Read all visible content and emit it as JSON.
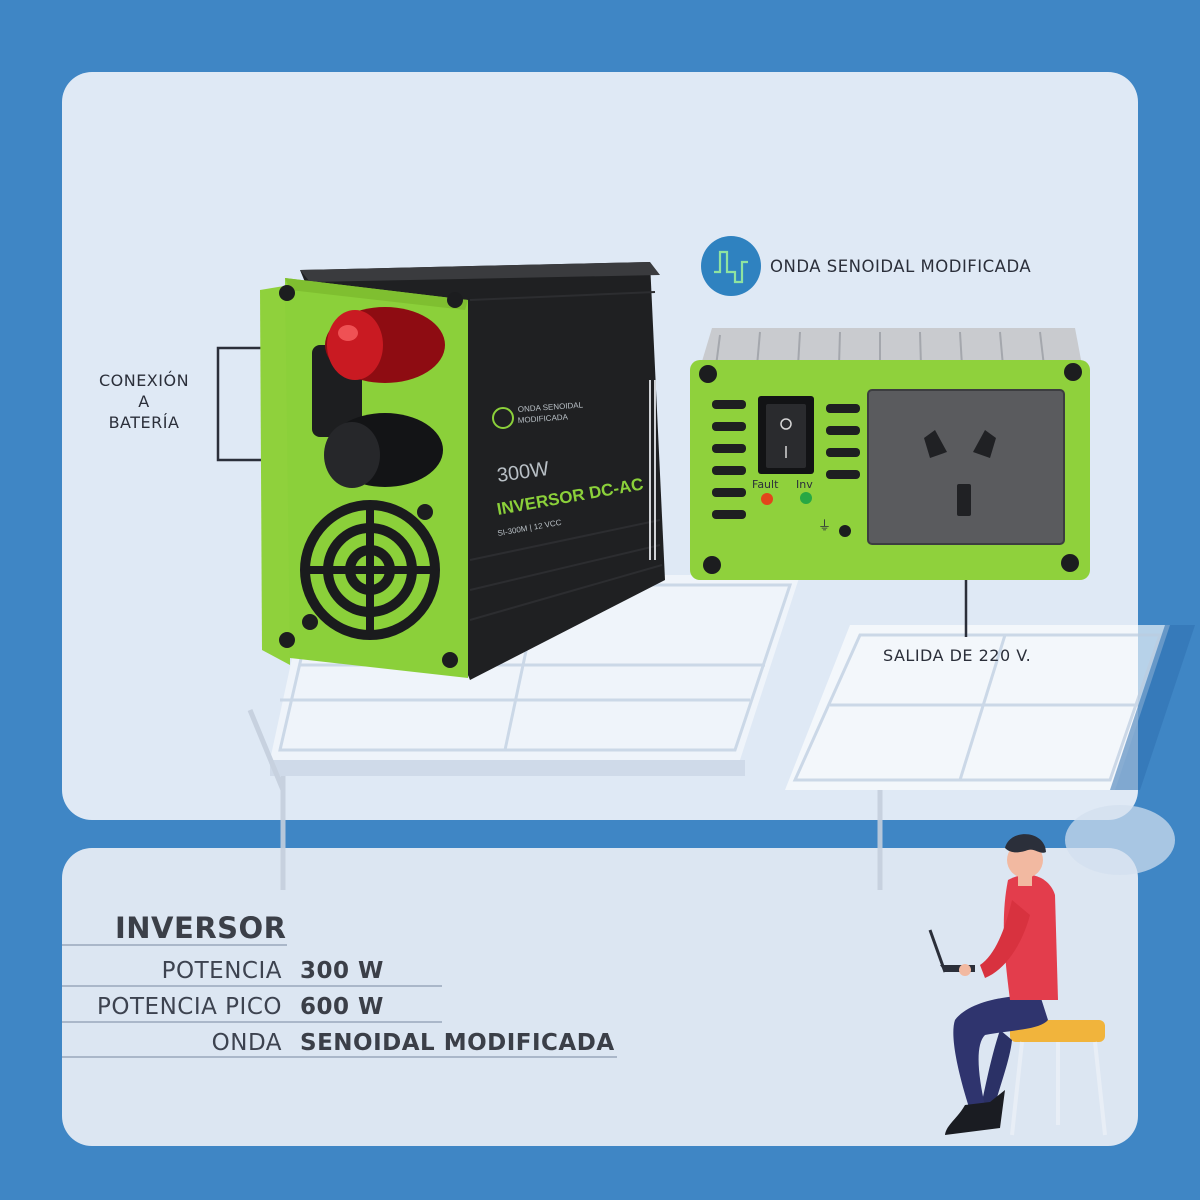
{
  "callouts": {
    "battery_line1": "CONEXIÓN",
    "battery_line2": "A",
    "battery_line3": "BATERÍA",
    "output": "SALIDA DE 220 V.",
    "wave": "ONDA SENOIDAL MODIFICADA"
  },
  "product": {
    "box_badge_line1": "ONDA SENOIDAL",
    "box_badge_line2": "MODIFICADA",
    "box_power": "300W",
    "box_name": "INVERSOR DC-AC",
    "box_model": "SI-300M | 12 VCC",
    "fault_led": "Fault",
    "inv_led": "Inv"
  },
  "specs": {
    "title": "INVERSOR",
    "rows": [
      {
        "label": "POTENCIA",
        "value": "300 W"
      },
      {
        "label": "POTENCIA PICO",
        "value": "600 W"
      },
      {
        "label": "ONDA",
        "value": "SENOIDAL MODIFICADA"
      }
    ]
  },
  "icons": [
    "sine-wave-icon",
    "person-laptop-illustration",
    "solar-panel-illustration"
  ]
}
